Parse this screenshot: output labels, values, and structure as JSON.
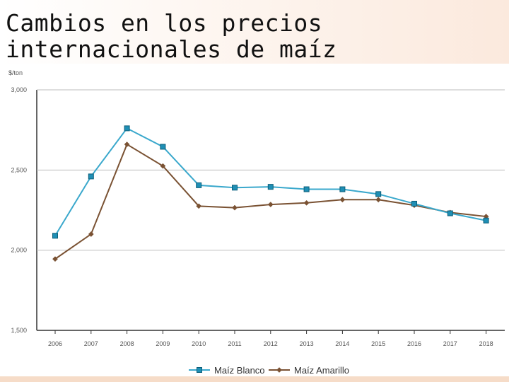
{
  "title": "Cambios en los precios internacionales de maíz",
  "colors": {
    "blanco": "#3aa8cc",
    "blanco_marker": "#1f8fb5",
    "amarillo": "#7a5233",
    "grid": "#bdbdbd"
  },
  "chart_data": {
    "type": "line",
    "title": "Cambios en los precios internacionales de maíz",
    "unit_label": "$/ton",
    "xlabel": "",
    "ylabel": "",
    "x": [
      "2006",
      "2007",
      "2008",
      "2009",
      "2010",
      "2011",
      "2012",
      "2013",
      "2014",
      "2015",
      "2016",
      "2017",
      "2018"
    ],
    "ylim": [
      1500,
      3000
    ],
    "yticks": [
      1500,
      2000,
      2500,
      3000
    ],
    "ytick_labels": [
      "1,500",
      "2,000",
      "2,500",
      "3,000"
    ],
    "grid": true,
    "legend_position": "bottom",
    "series": [
      {
        "name": "Maíz Blanco",
        "marker": "square",
        "color": "#3aa8cc",
        "values": [
          2090,
          2460,
          2760,
          2645,
          2405,
          2390,
          2395,
          2380,
          2380,
          2350,
          2290,
          2230,
          2185
        ]
      },
      {
        "name": "Maíz Amarillo",
        "marker": "diamond",
        "color": "#7a5233",
        "values": [
          1945,
          2100,
          2660,
          2525,
          2275,
          2265,
          2285,
          2295,
          2315,
          2315,
          2280,
          2235,
          2210
        ]
      }
    ]
  }
}
